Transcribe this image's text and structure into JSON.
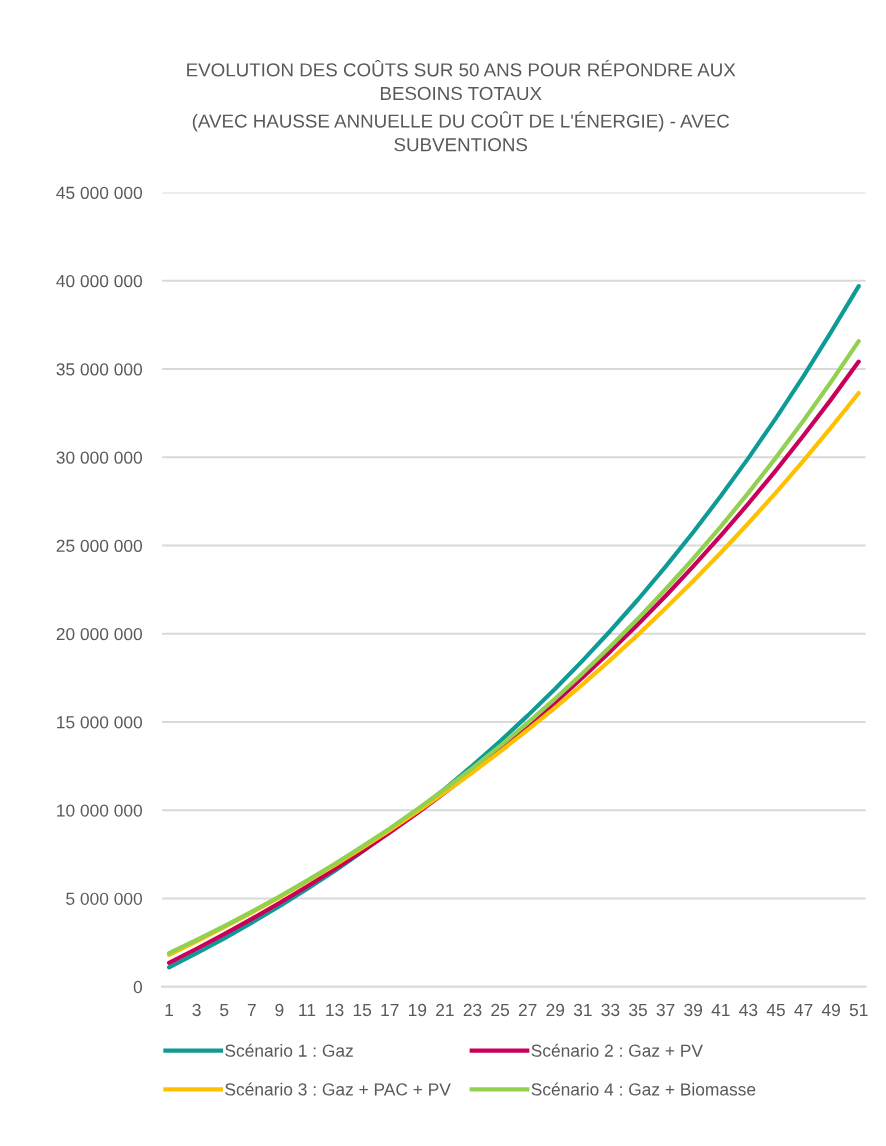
{
  "chart_data": {
    "type": "line",
    "title": "EVOLUTION DES COÛTS SUR 50 ANS POUR RÉPONDRE AUX\nBESOINS TOTAUX\n(AVEC HAUSSE ANNUELLE DU COÛT DE L'ÉNERGIE) - AVEC\nSUBVENTIONS",
    "x": [
      1,
      3,
      5,
      7,
      9,
      11,
      13,
      15,
      17,
      19,
      21,
      23,
      25,
      27,
      29,
      31,
      33,
      35,
      37,
      39,
      41,
      43,
      45,
      47,
      49,
      51
    ],
    "series": [
      {
        "name": "Scénario 1 : Gaz",
        "color": "#0e9a95",
        "values": [
          1100000,
          1900000,
          2740000,
          3630000,
          4560000,
          5540000,
          6560000,
          7640000,
          8770000,
          9960000,
          11210000,
          12530000,
          13910000,
          15360000,
          16880000,
          18490000,
          20170000,
          21940000,
          23800000,
          25750000,
          27800000,
          29950000,
          32220000,
          34600000,
          37100000,
          39700000
        ]
      },
      {
        "name": "Scénario 2 : Gaz + PV",
        "color": "#c8005a",
        "values": [
          1350000,
          2150000,
          2980000,
          3840000,
          4740000,
          5680000,
          6660000,
          7680000,
          8740000,
          9840000,
          11000000,
          12200000,
          13450000,
          14750000,
          16110000,
          17530000,
          19000000,
          20540000,
          22140000,
          23820000,
          25560000,
          27370000,
          29260000,
          31230000,
          33280000,
          35420000
        ]
      },
      {
        "name": "Scénario 3 : Gaz + PAC + PV",
        "color": "#ffc000",
        "values": [
          1800000,
          2570000,
          3370000,
          4200000,
          5060000,
          5960000,
          6890000,
          7860000,
          8870000,
          9920000,
          11010000,
          12140000,
          13320000,
          14550000,
          15820000,
          17140000,
          18520000,
          19950000,
          21440000,
          22990000,
          24590000,
          26260000,
          28000000,
          29810000,
          31690000,
          33640000
        ]
      },
      {
        "name": "Scénario 4 : Gaz + Biomasse",
        "color": "#92d050",
        "values": [
          1900000,
          2650000,
          3430000,
          4250000,
          5110000,
          6010000,
          6950000,
          7940000,
          8970000,
          10060000,
          11200000,
          12390000,
          13640000,
          14950000,
          16330000,
          17770000,
          19280000,
          20860000,
          22520000,
          24250000,
          26070000,
          27980000,
          29980000,
          32080000,
          34280000,
          36580000
        ]
      }
    ],
    "xlim": [
      0.5,
      51.5
    ],
    "xticks": [
      1,
      3,
      5,
      7,
      9,
      11,
      13,
      15,
      17,
      19,
      21,
      23,
      25,
      27,
      29,
      31,
      33,
      35,
      37,
      39,
      41,
      43,
      45,
      47,
      49,
      51
    ],
    "ylim": [
      0,
      45000000
    ],
    "yticks": [
      {
        "value": 0,
        "label": "0"
      },
      {
        "value": 5000000,
        "label": "5 000 000"
      },
      {
        "value": 10000000,
        "label": "10 000 000"
      },
      {
        "value": 15000000,
        "label": "15 000 000"
      },
      {
        "value": 20000000,
        "label": "20 000 000"
      },
      {
        "value": 25000000,
        "label": "25 000 000"
      },
      {
        "value": 30000000,
        "label": "30 000 000"
      },
      {
        "value": 35000000,
        "label": "35 000 000"
      },
      {
        "value": 40000000,
        "label": "40 000 000"
      },
      {
        "value": 45000000,
        "label": "45 000 000"
      }
    ],
    "grid": "y",
    "legend": "bottom",
    "marker": "none",
    "line_style": "solid"
  }
}
